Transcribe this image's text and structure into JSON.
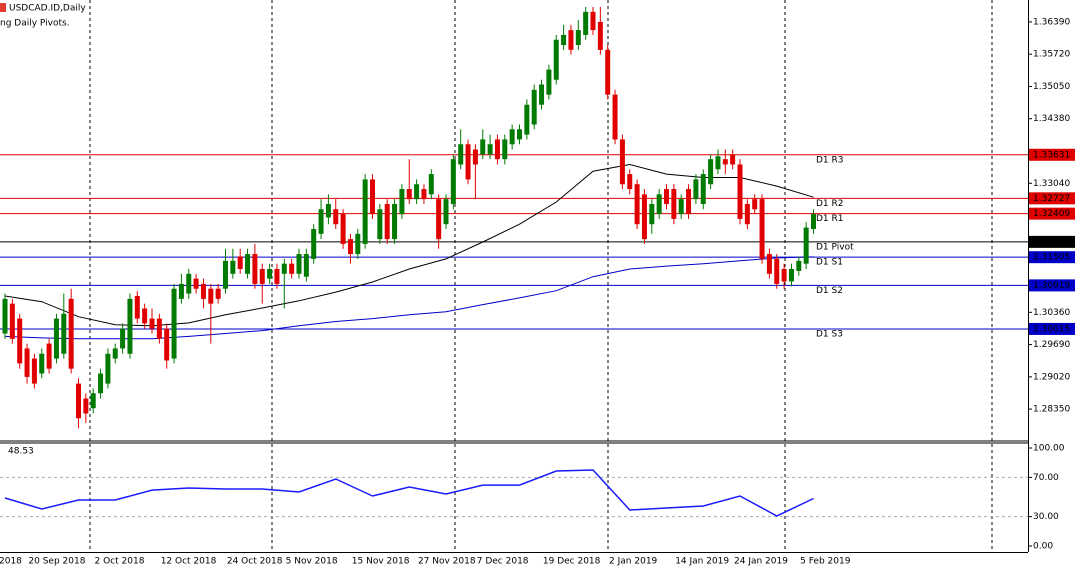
{
  "chart_data": {
    "type": "candlestick",
    "title": "USDCAD.ID,Daily",
    "subtitle": "ng Daily Pivots.",
    "categories": [
      "2018",
      null,
      null,
      null,
      "20 Sep 2018",
      null,
      null,
      null,
      null,
      null,
      null,
      null,
      null,
      "2 Oct 2018",
      null,
      null,
      null,
      null,
      null,
      null,
      null,
      null,
      "12 Oct 2018",
      null,
      null,
      null,
      null,
      null,
      null,
      null,
      null,
      "24 Oct 2018",
      null,
      null,
      null,
      null,
      null,
      null,
      null,
      "5 Nov 2018",
      null,
      null,
      null,
      null,
      null,
      null,
      null,
      null,
      "15 Nov 2018",
      null,
      null,
      null,
      null,
      null,
      null,
      null,
      null,
      "27 Nov 2018",
      null,
      null,
      null,
      null,
      null,
      null,
      null,
      "7 Dec 2018",
      null,
      null,
      null,
      null,
      null,
      null,
      null,
      null,
      "19 Dec 2018",
      null,
      null,
      null,
      null,
      null,
      null,
      null,
      null,
      "2 Jan 2019",
      null,
      null,
      null,
      null,
      null,
      null,
      null,
      null,
      "14 Jan 2019",
      null,
      null,
      null,
      null,
      null,
      null,
      null,
      "24 Jan 2019",
      null,
      null,
      null,
      null,
      null,
      null,
      null,
      null,
      "5 Feb 2019",
      null
    ],
    "open": [
      1.2992,
      1.3054,
      1.3023,
      1.2961,
      1.294,
      1.2909,
      1.2971,
      1.294,
      1.295,
      1.3064,
      1.2888,
      1.2857,
      1.2837,
      1.2868,
      1.2888,
      1.294,
      1.2961,
      1.295,
      1.307,
      1.3044,
      1.3023,
      1.3023,
      1.3002,
      1.294,
      1.3064,
      1.3075,
      1.3106,
      1.3095,
      1.3085,
      1.3085,
      1.3085,
      1.3116,
      1.3152,
      1.3116,
      1.3157,
      1.3126,
      1.3106,
      1.3126,
      1.3116,
      1.3137,
      1.3116,
      1.311,
      1.3147,
      1.3199,
      1.3233,
      1.325,
      1.324,
      1.3188,
      1.3157,
      1.3178,
      1.3312,
      1.3188,
      1.3261,
      1.3188,
      1.324,
      1.3292,
      1.3271,
      1.3292,
      1.3281,
      1.3271,
      1.3219,
      1.3261,
      1.3343,
      1.3385,
      1.3374,
      1.3364,
      1.3364,
      1.3395,
      1.3354,
      1.3385,
      1.3395,
      1.3405,
      1.3426,
      1.3467,
      1.3488,
      1.3519,
      1.3591,
      1.3622,
      1.3591,
      1.3612,
      1.366,
      1.3639,
      1.3581,
      1.3488,
      1.3395,
      1.3323,
      1.3302,
      1.3281,
      1.3219,
      1.324,
      1.3292,
      1.3292,
      1.324,
      1.3292,
      1.3271,
      1.3261,
      1.3302,
      1.3333,
      1.3354,
      1.3364,
      1.3343,
      1.3261,
      1.3271,
      1.3271,
      1.3157,
      1.3147,
      1.3126,
      1.31,
      1.3122,
      1.3137,
      1.3209
    ],
    "high": [
      1.3075,
      1.3064,
      1.3033,
      1.2971,
      1.295,
      1.2961,
      1.2981,
      1.3033,
      1.3075,
      1.3085,
      1.2899,
      1.2868,
      1.2878,
      1.2919,
      1.2961,
      1.2971,
      1.3013,
      1.3075,
      1.308,
      1.3054,
      1.3044,
      1.3033,
      1.3013,
      1.3095,
      1.3116,
      1.3126,
      1.3116,
      1.3106,
      1.3095,
      1.3095,
      1.3168,
      1.3168,
      1.3168,
      1.3168,
      1.3178,
      1.3137,
      1.3137,
      1.3137,
      1.3147,
      1.3147,
      1.3168,
      1.3168,
      1.3219,
      1.3271,
      1.3281,
      1.3271,
      1.325,
      1.3199,
      1.3209,
      1.3323,
      1.3323,
      1.3261,
      1.3271,
      1.3271,
      1.3302,
      1.3354,
      1.3312,
      1.3302,
      1.3333,
      1.3281,
      1.3281,
      1.3364,
      1.3416,
      1.3395,
      1.3385,
      1.3416,
      1.3405,
      1.3405,
      1.3405,
      1.3426,
      1.3426,
      1.3478,
      1.3509,
      1.3519,
      1.355,
      1.3612,
      1.3633,
      1.3633,
      1.3643,
      1.367,
      1.367,
      1.367,
      1.3591,
      1.3498,
      1.3405,
      1.3333,
      1.3312,
      1.3292,
      1.3271,
      1.3292,
      1.3302,
      1.3302,
      1.3281,
      1.3302,
      1.3323,
      1.3333,
      1.3364,
      1.3374,
      1.3374,
      1.3374,
      1.3354,
      1.3271,
      1.3281,
      1.3281,
      1.3168,
      1.3157,
      1.3137,
      1.3137,
      1.3152,
      1.3223,
      1.325
    ],
    "low": [
      1.2981,
      1.2971,
      1.2919,
      1.2888,
      1.2878,
      1.2899,
      1.2909,
      1.293,
      1.294,
      1.2909,
      1.2795,
      1.2806,
      1.2826,
      1.2857,
      1.2878,
      1.293,
      1.295,
      1.294,
      1.3013,
      1.3002,
      1.2992,
      1.2971,
      1.2919,
      1.293,
      1.3054,
      1.3064,
      1.3075,
      1.3044,
      1.2971,
      1.3054,
      1.3075,
      1.3106,
      1.3116,
      1.3106,
      1.3085,
      1.3054,
      1.3095,
      1.3085,
      1.3044,
      1.3106,
      1.3106,
      1.31,
      1.3137,
      1.3188,
      1.3219,
      1.3209,
      1.3168,
      1.3137,
      1.3147,
      1.3168,
      1.323,
      1.3178,
      1.3178,
      1.3178,
      1.323,
      1.3261,
      1.3261,
      1.3261,
      1.3271,
      1.3168,
      1.3209,
      1.325,
      1.3333,
      1.3302,
      1.3271,
      1.3354,
      1.3354,
      1.3343,
      1.3343,
      1.3374,
      1.3385,
      1.3395,
      1.3416,
      1.3457,
      1.3478,
      1.3509,
      1.3581,
      1.3571,
      1.3581,
      1.3602,
      1.3612,
      1.3571,
      1.3478,
      1.3385,
      1.3292,
      1.3281,
      1.3209,
      1.3178,
      1.3199,
      1.323,
      1.325,
      1.3219,
      1.323,
      1.323,
      1.3261,
      1.325,
      1.3292,
      1.3323,
      1.3323,
      1.3333,
      1.3219,
      1.3209,
      1.324,
      1.3137,
      1.3106,
      1.3085,
      1.3085,
      1.309,
      1.3112,
      1.3126,
      1.3199
    ],
    "close": [
      1.3064,
      1.2981,
      1.293,
      1.2902,
      1.2888,
      1.295,
      1.2919,
      1.3023,
      1.3033,
      1.2919,
      1.2816,
      1.2826,
      1.2868,
      1.2909,
      1.295,
      1.2961,
      1.3002,
      1.3064,
      1.3023,
      1.3013,
      1.3002,
      1.2981,
      1.2936,
      1.3085,
      1.3095,
      1.3116,
      1.3085,
      1.3064,
      1.3054,
      1.3064,
      1.3143,
      1.3143,
      1.3126,
      1.3157,
      1.3095,
      1.3095,
      1.3126,
      1.3095,
      1.3137,
      1.3116,
      1.3157,
      1.3157,
      1.3209,
      1.325,
      1.3261,
      1.3219,
      1.3178,
      1.3157,
      1.3199,
      1.3312,
      1.324,
      1.325,
      1.3188,
      1.3261,
      1.3292,
      1.3271,
      1.3302,
      1.3271,
      1.3323,
      1.3188,
      1.3271,
      1.3354,
      1.3385,
      1.3312,
      1.3343,
      1.3395,
      1.3385,
      1.3354,
      1.3395,
      1.3416,
      1.3416,
      1.3467,
      1.3498,
      1.3509,
      1.354,
      1.3602,
      1.3612,
      1.3581,
      1.3622,
      1.366,
      1.3622,
      1.3581,
      1.3488,
      1.3395,
      1.3302,
      1.3292,
      1.3219,
      1.3188,
      1.3261,
      1.3281,
      1.3261,
      1.323,
      1.3271,
      1.324,
      1.3312,
      1.3323,
      1.3354,
      1.336,
      1.3343,
      1.3343,
      1.323,
      1.3219,
      1.325,
      1.3147,
      1.3116,
      1.3095,
      1.31,
      1.3126,
      1.3143,
      1.3212,
      1.324
    ],
    "up_color": "#007a00",
    "down_color": "#e00000",
    "ylim": [
      1.27709,
      1.36845
    ],
    "yticks": [
      {
        "value": 1.3639,
        "label": "1.36390"
      },
      {
        "value": 1.3572,
        "label": "1.35720"
      },
      {
        "value": 1.3505,
        "label": "1.35050"
      },
      {
        "value": 1.3438,
        "label": "1.34380"
      },
      {
        "value": 1.3304,
        "label": "1.33040"
      },
      {
        "value": 1.3036,
        "label": "1.30360"
      },
      {
        "value": 1.2969,
        "label": "1.29690"
      },
      {
        "value": 1.2902,
        "label": "1.29020"
      },
      {
        "value": 1.2835,
        "label": "1.28350"
      }
    ],
    "pivots": [
      {
        "name": "D1 R3",
        "value": 1.33631,
        "color": "#e00000"
      },
      {
        "name": "D1 R2",
        "value": 1.32727,
        "color": "#e00000"
      },
      {
        "name": "D1 R1",
        "value": 1.32409,
        "color": "#e00000"
      },
      {
        "name": "D1 Pivot",
        "value": 1.31823,
        "color": "#000000"
      },
      {
        "name": "D1 S1",
        "value": 1.31505,
        "color": "#0000c8"
      },
      {
        "name": "D1 S2",
        "value": 1.30919,
        "color": "#0000c8"
      },
      {
        "name": "D1 S3",
        "value": 1.30015,
        "color": "#0000c8"
      }
    ],
    "moving_averages": [
      {
        "color": "#000000",
        "x": [
          0,
          5,
          10,
          15,
          20,
          25,
          30,
          35,
          40,
          45,
          50,
          55,
          60,
          65,
          70,
          75,
          80,
          85,
          90,
          95,
          100,
          105,
          110
        ],
        "values": [
          1.307,
          1.3058,
          1.3027,
          1.301,
          1.3008,
          1.3014,
          1.3031,
          1.3045,
          1.306,
          1.3078,
          1.3099,
          1.3126,
          1.3147,
          1.3182,
          1.3219,
          1.3265,
          1.3329,
          1.3343,
          1.3323,
          1.3316,
          1.3316,
          1.3298,
          1.3275
        ]
      },
      {
        "color": "#0000c8",
        "x": [
          0,
          5,
          10,
          15,
          20,
          25,
          30,
          35,
          40,
          45,
          50,
          55,
          60,
          65,
          70,
          75,
          80,
          85,
          90,
          95,
          100,
          105,
          110
        ],
        "values": [
          1.2986,
          1.2983,
          1.2981,
          1.2981,
          1.2981,
          1.2986,
          1.2992,
          1.2998,
          1.3008,
          1.3017,
          1.3023,
          1.3031,
          1.3037,
          1.3052,
          1.3066,
          1.3081,
          1.311,
          1.3126,
          1.3132,
          1.3137,
          1.3143,
          1.3149,
          1.3151
        ]
      }
    ],
    "rsi": {
      "current": 48.53,
      "color": "#1a1aff",
      "ylim": [
        -6.1,
        105.1
      ],
      "yticks": [
        {
          "value": 100,
          "label": "100.00"
        },
        {
          "value": 70,
          "label": "70.00"
        },
        {
          "value": 30,
          "label": "30.00"
        },
        {
          "value": 0,
          "label": "0.00"
        }
      ],
      "levels": [
        70,
        30
      ],
      "x": [
        0,
        5,
        10,
        15,
        20,
        25,
        30,
        35,
        40,
        45,
        50,
        55,
        60,
        65,
        70,
        75,
        80,
        85,
        90,
        95,
        100,
        105,
        110
      ],
      "values": [
        49.0,
        37.8,
        46.9,
        46.9,
        57.1,
        59.2,
        58.2,
        58.2,
        55.1,
        68.4,
        51.0,
        60.2,
        53.1,
        62.2,
        62.2,
        76.5,
        77.6,
        36.7,
        38.8,
        40.8,
        51.0,
        30.6,
        48.53
      ]
    }
  }
}
